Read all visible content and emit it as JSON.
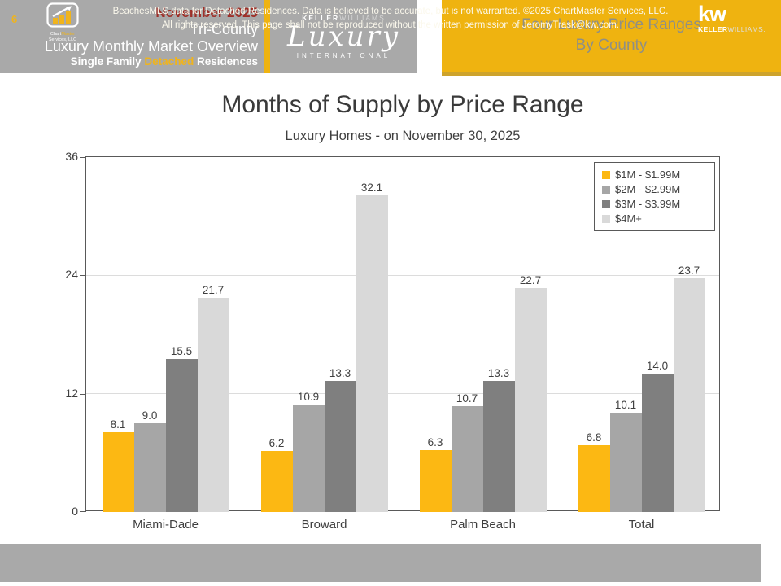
{
  "header": {
    "left": {
      "line1": "November 2025",
      "line2": "Tri-County",
      "line3": "Luxury Monthly Market Overview",
      "line4_prefix": "Single Family ",
      "line4_highlight": "Detached",
      "line4_suffix": " Residences"
    },
    "logo": {
      "top_bold": "KELLER",
      "top_light": "WILLIAMS",
      "script": "Luxury",
      "bottom": "INTERNATIONAL"
    },
    "right": {
      "line1": "Four Luxury Price Ranges",
      "line2": "By County"
    }
  },
  "chart_data": {
    "type": "bar",
    "title": "Months of Supply by Price Range",
    "subtitle": "Luxury Homes - on November 30, 2025",
    "categories": [
      "Miami-Dade",
      "Broward",
      "Palm Beach",
      "Total"
    ],
    "series": [
      {
        "name": "$1M - $1.99M",
        "color": "#FCB813",
        "values": [
          8.1,
          6.2,
          6.3,
          6.8
        ]
      },
      {
        "name": "$2M - $2.99M",
        "color": "#A6A6A6",
        "values": [
          9.0,
          10.9,
          10.7,
          10.1
        ]
      },
      {
        "name": "$3M - $3.99M",
        "color": "#7F7F7F",
        "values": [
          15.5,
          13.3,
          13.3,
          14.0
        ]
      },
      {
        "name": "$4M+",
        "color": "#D9D9D9",
        "values": [
          21.7,
          32.1,
          22.7,
          23.7
        ]
      }
    ],
    "ylim": [
      0,
      36
    ],
    "yticks": [
      0,
      12,
      24,
      36
    ],
    "grid": "horizontal gridlines at 12 and 24",
    "legend_position": "top-right inside plot",
    "value_labels": "one decimal above each bar"
  },
  "footer": {
    "page_number": "6",
    "cm_logo_line1_white": "Chart",
    "cm_logo_line1_gold": "Master",
    "cm_logo_line2": "Services, LLC",
    "disclaimer_line1": "BeachesMLS data for Detached Residences.  Data is believed to be accurate, but is not warranted.   ©2025  ChartMaster Services, LLC.",
    "disclaimer_line2": "All rights reserved. This page shall not be reproduced without the written permission of JeromyTrask@kw.com.",
    "kw_mark": "kw",
    "kw_name_bold": "KELLER",
    "kw_name_light": "WILLIAMS."
  },
  "colors": {
    "gold": "#EFB310",
    "header_gray": "#A9A9A9",
    "dark_red": "#9E2F28",
    "axis": "#595959",
    "text": "#3F3F3F"
  }
}
